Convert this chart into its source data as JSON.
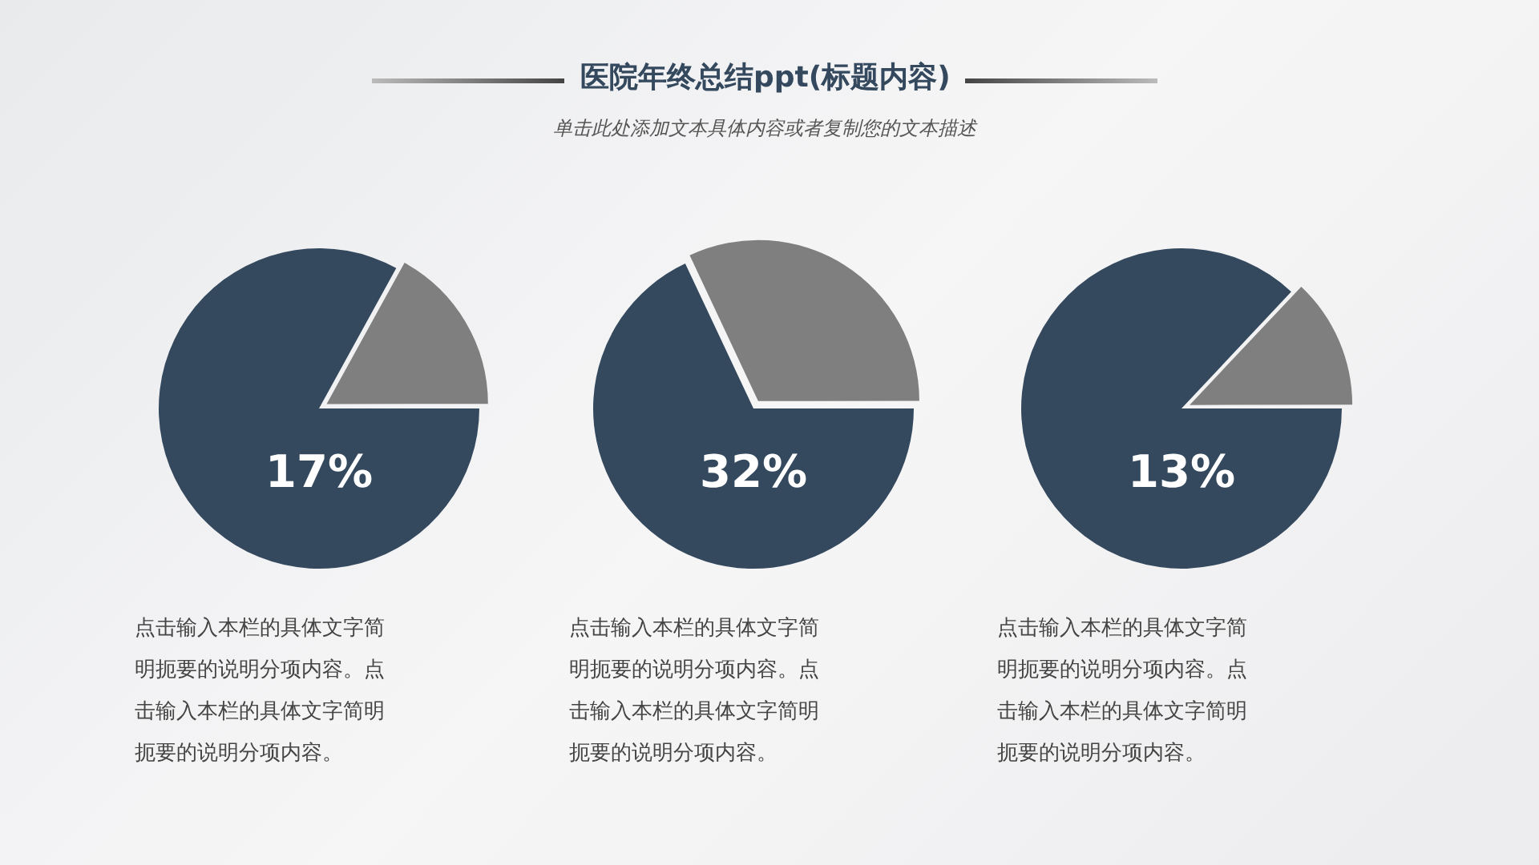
{
  "chart_data": [
    {
      "type": "pie",
      "categories": [
        null,
        null
      ],
      "values": [
        17,
        83
      ],
      "colors": [
        "#7f7f7f",
        "#34495e"
      ],
      "annotations": [
        "17%",
        "点击输入本栏的具体文字简明扼要的说明分项内容。点击输入本栏的具体文字简明扼要的说明分项内容。"
      ],
      "legend": false
    },
    {
      "type": "pie",
      "title": "医院年终总结ppt(标题内容)",
      "subtitle": "单击此处添加文本具体内容或者复制您的文本描述",
      "categories": [
        null,
        null
      ],
      "values": [
        32,
        68
      ],
      "colors": [
        "#7f7f7f",
        "#34495e"
      ],
      "annotations": [
        "32%",
        "点击输入本栏的具体文字简明扼要的说明分项内容。点击输入本栏的具体文字简明扼要的说明分项内容。"
      ],
      "legend": false
    },
    {
      "type": "pie",
      "categories": [
        null,
        null
      ],
      "values": [
        13,
        87
      ],
      "colors": [
        "#7f7f7f",
        "#34495e"
      ],
      "annotations": [
        "13%",
        "点击输入本栏的具体文字简明扼要的说明分项内容。点击输入本栏的具体文字简明扼要的说明分项内容。"
      ],
      "legend": false
    }
  ]
}
